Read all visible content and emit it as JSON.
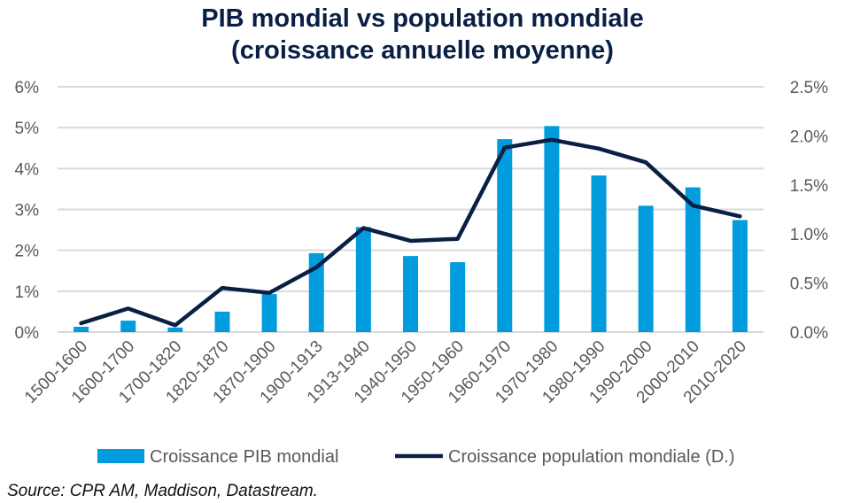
{
  "chart_data": {
    "type": "bar+line",
    "title": [
      "PIB mondial vs population mondiale",
      "(croissance annuelle moyenne)"
    ],
    "categories": [
      "1500-1600",
      "1600-1700",
      "1700-1820",
      "1820-1870",
      "1870-1900",
      "1900-1913",
      "1913-1940",
      "1940-1950",
      "1950-1960",
      "1960-1970",
      "1970-1980",
      "1980-1990",
      "1990-2000",
      "2000-2010",
      "2010-2020"
    ],
    "series": [
      {
        "name": "Croissance PIB mondial",
        "type": "bar",
        "axis": "left",
        "color": "#009cde",
        "values": [
          0.13,
          0.28,
          0.11,
          0.5,
          0.93,
          1.93,
          2.57,
          1.86,
          1.71,
          4.72,
          5.04,
          3.83,
          3.09,
          3.54,
          2.74
        ]
      },
      {
        "name": "Croissance population mondiale (D.)",
        "type": "line",
        "axis": "right",
        "color": "#0a1f44",
        "values": [
          0.09,
          0.24,
          0.07,
          0.45,
          0.4,
          0.66,
          1.06,
          0.93,
          0.95,
          1.88,
          1.96,
          1.87,
          1.73,
          1.29,
          1.18
        ]
      }
    ],
    "yleft": {
      "ylim": [
        0,
        6
      ],
      "ticks": [
        "0%",
        "1%",
        "2%",
        "3%",
        "4%",
        "5%",
        "6%"
      ]
    },
    "yright": {
      "ylim": [
        0,
        2.5
      ],
      "ticks": [
        "0.0%",
        "0.5%",
        "1.0%",
        "1.5%",
        "2.0%",
        "2.5%"
      ]
    },
    "grid": true,
    "legend": "bottom"
  },
  "source": "Source: CPR AM, Maddison, Datastream."
}
